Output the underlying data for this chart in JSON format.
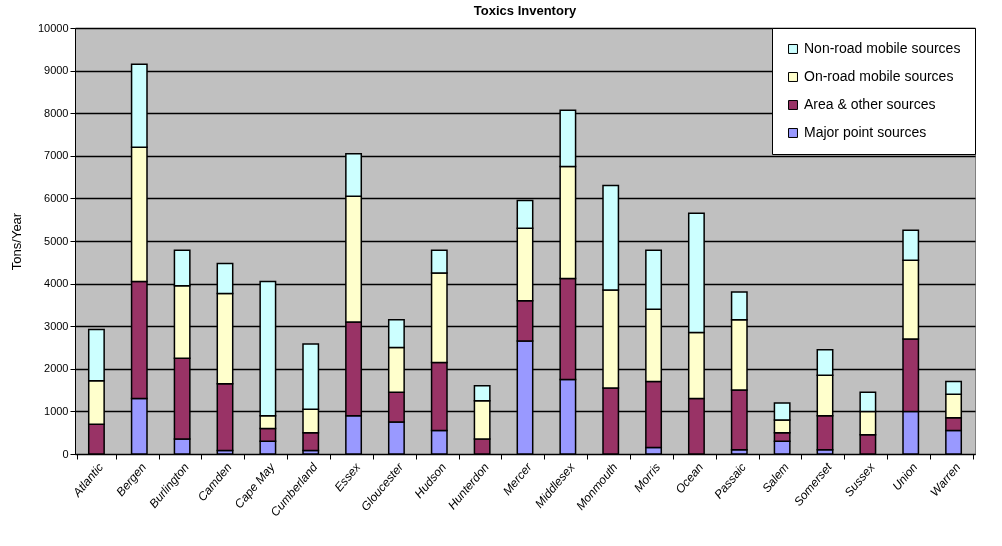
{
  "chart_data": {
    "type": "bar",
    "title": "Toxics Inventory",
    "ylabel": "Tons/Year",
    "stacked": true,
    "categories": [
      "Atlantic",
      "Bergen",
      "Burlington",
      "Camden",
      "Cape May",
      "Cumberland",
      "Essex",
      "Gloucester",
      "Hudson",
      "Hunterdon",
      "Mercer",
      "Middlesex",
      "Monmouth",
      "Morris",
      "Ocean",
      "Passaic",
      "Salem",
      "Somerset",
      "Sussex",
      "Union",
      "Warren"
    ],
    "series": [
      {
        "name": "Major point sources",
        "color": "#9999ff",
        "values": [
          0,
          1300,
          350,
          80,
          300,
          80,
          900,
          750,
          550,
          0,
          2650,
          1750,
          0,
          150,
          0,
          100,
          300,
          100,
          0,
          1000,
          550
        ]
      },
      {
        "name": "Area & other sources",
        "color": "#993366",
        "values": [
          700,
          2750,
          1900,
          1570,
          300,
          420,
          2200,
          700,
          1600,
          350,
          950,
          2370,
          1550,
          1550,
          1300,
          1400,
          200,
          800,
          450,
          1700,
          300
        ]
      },
      {
        "name": "On-road mobile sources",
        "color": "#ffffcc",
        "values": [
          1020,
          3150,
          1700,
          2120,
          300,
          550,
          2950,
          1050,
          2100,
          900,
          1700,
          2630,
          2300,
          1700,
          1550,
          1650,
          300,
          950,
          550,
          1850,
          550
        ]
      },
      {
        "name": "Non-road mobile sources",
        "color": "#ccffff",
        "values": [
          1200,
          1950,
          830,
          700,
          3150,
          1530,
          1000,
          650,
          530,
          350,
          650,
          1320,
          2450,
          1380,
          2800,
          650,
          400,
          600,
          450,
          700,
          300
        ]
      }
    ],
    "ylim": [
      0,
      10000
    ],
    "yticks": [
      0,
      1000,
      2000,
      3000,
      4000,
      5000,
      6000,
      7000,
      8000,
      9000,
      10000
    ],
    "grid": "y",
    "legend": "top right"
  }
}
